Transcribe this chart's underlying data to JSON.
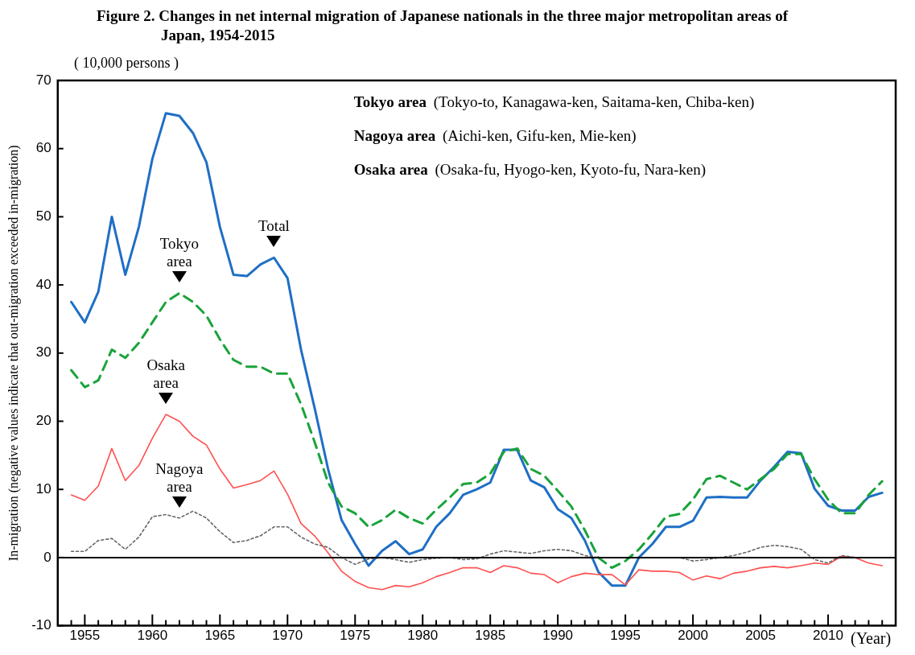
{
  "chart_data": {
    "type": "line",
    "title": "Figure 2. Changes in net internal migration of Japanese nationals in the three major metropolitan areas of Japan, 1954-2015",
    "subtitle": "( 10,000 persons )",
    "ylabel": "In-migration (negative values indicate that out-migration exceeded in-migration)",
    "xlabel": "(Year)",
    "x": [
      1954,
      1955,
      1956,
      1957,
      1958,
      1959,
      1960,
      1961,
      1962,
      1963,
      1964,
      1965,
      1966,
      1967,
      1968,
      1969,
      1970,
      1971,
      1972,
      1973,
      1974,
      1975,
      1976,
      1977,
      1978,
      1979,
      1980,
      1981,
      1982,
      1983,
      1984,
      1985,
      1986,
      1987,
      1988,
      1989,
      1990,
      1991,
      1992,
      1993,
      1994,
      1995,
      1996,
      1997,
      1998,
      1999,
      2000,
      2001,
      2002,
      2003,
      2004,
      2005,
      2006,
      2007,
      2008,
      2009,
      2010,
      2011,
      2012,
      2013,
      2014
    ],
    "series": [
      {
        "color": "#1f6fc5",
        "line_style": "solid",
        "values": [
          37.5,
          34.5,
          39,
          50,
          41.5,
          48.5,
          58.5,
          65.2,
          64.8,
          62.3,
          58,
          48.5,
          41.5,
          41.3,
          43,
          44,
          41,
          30.5,
          22,
          13,
          5.5,
          2,
          -1.2,
          1,
          2.4,
          0.5,
          1.2,
          4.5,
          6.5,
          9.2,
          10,
          11,
          15.8,
          15.8,
          11.3,
          10.3,
          7.1,
          5.8,
          2.5,
          -2.1,
          -4.1,
          -4.1,
          0,
          2,
          4.5,
          4.5,
          5.4,
          8.8,
          8.9,
          8.8,
          8.8,
          11.3,
          13.3,
          15.5,
          15.3,
          10.1,
          7.6,
          6.9,
          6.9,
          8.9,
          9.5
        ]
      },
      {
        "color": "#1aa33a",
        "line_style": "dashed",
        "values": [
          27.5,
          25,
          26,
          30.5,
          29.3,
          31.5,
          34.5,
          37.5,
          38.8,
          37.5,
          35.5,
          32,
          29,
          28,
          28,
          27,
          27,
          22.5,
          17,
          11,
          7.5,
          6.5,
          4.5,
          5.5,
          7,
          5.8,
          5,
          7,
          8.8,
          10.8,
          11,
          12.3,
          15.5,
          16,
          13,
          12,
          9.8,
          7.5,
          4,
          0,
          -1.5,
          -0.5,
          1.2,
          3.5,
          6,
          6.4,
          8.5,
          11.5,
          12,
          11,
          10,
          11.5,
          13,
          15.2,
          15.2,
          11.5,
          8.5,
          6.5,
          6.5,
          9.2,
          11.2
        ]
      },
      {
        "color": "#ff5050",
        "line_style": "solid",
        "values": [
          9.2,
          8.4,
          10.5,
          16,
          11.3,
          13.5,
          17.5,
          21,
          20,
          17.8,
          16.5,
          13,
          10.2,
          10.7,
          11.3,
          12.7,
          9.3,
          5,
          3.2,
          0.7,
          -2,
          -3.5,
          -4.4,
          -4.7,
          -4.1,
          -4.3,
          -3.7,
          -2.8,
          -2.2,
          -1.5,
          -1.5,
          -2.2,
          -1.2,
          -1.5,
          -2.3,
          -2.5,
          -3.7,
          -2.8,
          -2.3,
          -2.5,
          -2.5,
          -4,
          -1.8,
          -2,
          -2,
          -2.2,
          -3.3,
          -2.7,
          -3.1,
          -2.3,
          -2,
          -1.5,
          -1.3,
          -1.5,
          -1.2,
          -0.8,
          -1,
          0.2,
          0,
          -0.8,
          -1.2
        ]
      },
      {
        "color": "#666666",
        "line_style": "dotted",
        "values": [
          0.9,
          0.9,
          2.5,
          2.8,
          1.2,
          3,
          6,
          6.3,
          5.8,
          6.8,
          5.8,
          3.8,
          2.2,
          2.5,
          3.2,
          4.5,
          4.5,
          3,
          2,
          1.5,
          0,
          -1,
          -0.2,
          0,
          -0.3,
          -0.7,
          -0.3,
          -0.1,
          0,
          -0.3,
          -0.2,
          0.5,
          1,
          0.8,
          0.6,
          1,
          1.2,
          1,
          0.3,
          0,
          0,
          0,
          0,
          0,
          0,
          0,
          -0.5,
          -0.3,
          0,
          0.3,
          0.8,
          1.5,
          1.8,
          1.6,
          1.2,
          -0.3,
          -0.8,
          0.3,
          0,
          0,
          0
        ]
      }
    ],
    "xlim": [
      1953,
      2015
    ],
    "xticks": [
      {
        "value": 1954,
        "label": null
      },
      1955,
      {
        "value": 1956,
        "label": null
      },
      {
        "value": 1957,
        "label": null
      },
      {
        "value": 1958,
        "label": null
      },
      {
        "value": 1959,
        "label": null
      },
      1960,
      {
        "value": 1961,
        "label": null
      },
      {
        "value": 1962,
        "label": null
      },
      {
        "value": 1963,
        "label": null
      },
      {
        "value": 1964,
        "label": null
      },
      1965,
      {
        "value": 1966,
        "label": null
      },
      {
        "value": 1967,
        "label": null
      },
      {
        "value": 1968,
        "label": null
      },
      {
        "value": 1969,
        "label": null
      },
      1970,
      {
        "value": 1971,
        "label": null
      },
      {
        "value": 1972,
        "label": null
      },
      {
        "value": 1973,
        "label": null
      },
      {
        "value": 1974,
        "label": null
      },
      1975,
      {
        "value": 1976,
        "label": null
      },
      {
        "value": 1977,
        "label": null
      },
      {
        "value": 1978,
        "label": null
      },
      {
        "value": 1979,
        "label": null
      },
      1980,
      {
        "value": 1981,
        "label": null
      },
      {
        "value": 1982,
        "label": null
      },
      {
        "value": 1983,
        "label": null
      },
      {
        "value": 1984,
        "label": null
      },
      1985,
      {
        "value": 1986,
        "label": null
      },
      {
        "value": 1987,
        "label": null
      },
      {
        "value": 1988,
        "label": null
      },
      {
        "value": 1989,
        "label": null
      },
      1990,
      {
        "value": 1991,
        "label": null
      },
      {
        "value": 1992,
        "label": null
      },
      {
        "value": 1993,
        "label": null
      },
      {
        "value": 1994,
        "label": null
      },
      1995,
      {
        "value": 1996,
        "label": null
      },
      {
        "value": 1997,
        "label": null
      },
      {
        "value": 1998,
        "label": null
      },
      {
        "value": 1999,
        "label": null
      },
      2000,
      {
        "value": 2001,
        "label": null
      },
      {
        "value": 2002,
        "label": null
      },
      {
        "value": 2003,
        "label": null
      },
      {
        "value": 2004,
        "label": null
      },
      2005,
      {
        "value": 2006,
        "label": null
      },
      {
        "value": 2007,
        "label": null
      },
      {
        "value": 2008,
        "label": null
      },
      {
        "value": 2009,
        "label": null
      },
      2010,
      {
        "value": 2011,
        "label": null
      },
      {
        "value": 2012,
        "label": null
      },
      {
        "value": 2013,
        "label": null
      },
      {
        "value": 2014,
        "label": null
      }
    ],
    "ylim": [
      -10,
      70
    ],
    "yticks": [
      -10,
      0,
      10,
      20,
      30,
      40,
      50,
      60,
      70
    ],
    "ref_lines": [
      {
        "axis": "y",
        "value": 0,
        "color": "#000000"
      }
    ],
    "annotations": [
      {
        "text": "Total",
        "x": 1969,
        "y": 44
      },
      {
        "text": "Tokyo\narea",
        "x": 1962,
        "y": 38.8
      },
      {
        "text": "Osaka\narea",
        "x": 1961,
        "y": 21
      },
      {
        "text": "Nagoya\narea",
        "x": 1962,
        "y": 5.8
      },
      "Tokyo area (Tokyo-to, Kanagawa-ken, Saitama-ken, Chiba-ken)",
      "Nagoya area (Aichi-ken, Gifu-ken, Mie-ken)",
      "Osaka area (Osaka-fu, Hyogo-ken, Kyoto-fu, Nara-ken)"
    ],
    "grid": false,
    "legend": false,
    "marker": "none"
  }
}
